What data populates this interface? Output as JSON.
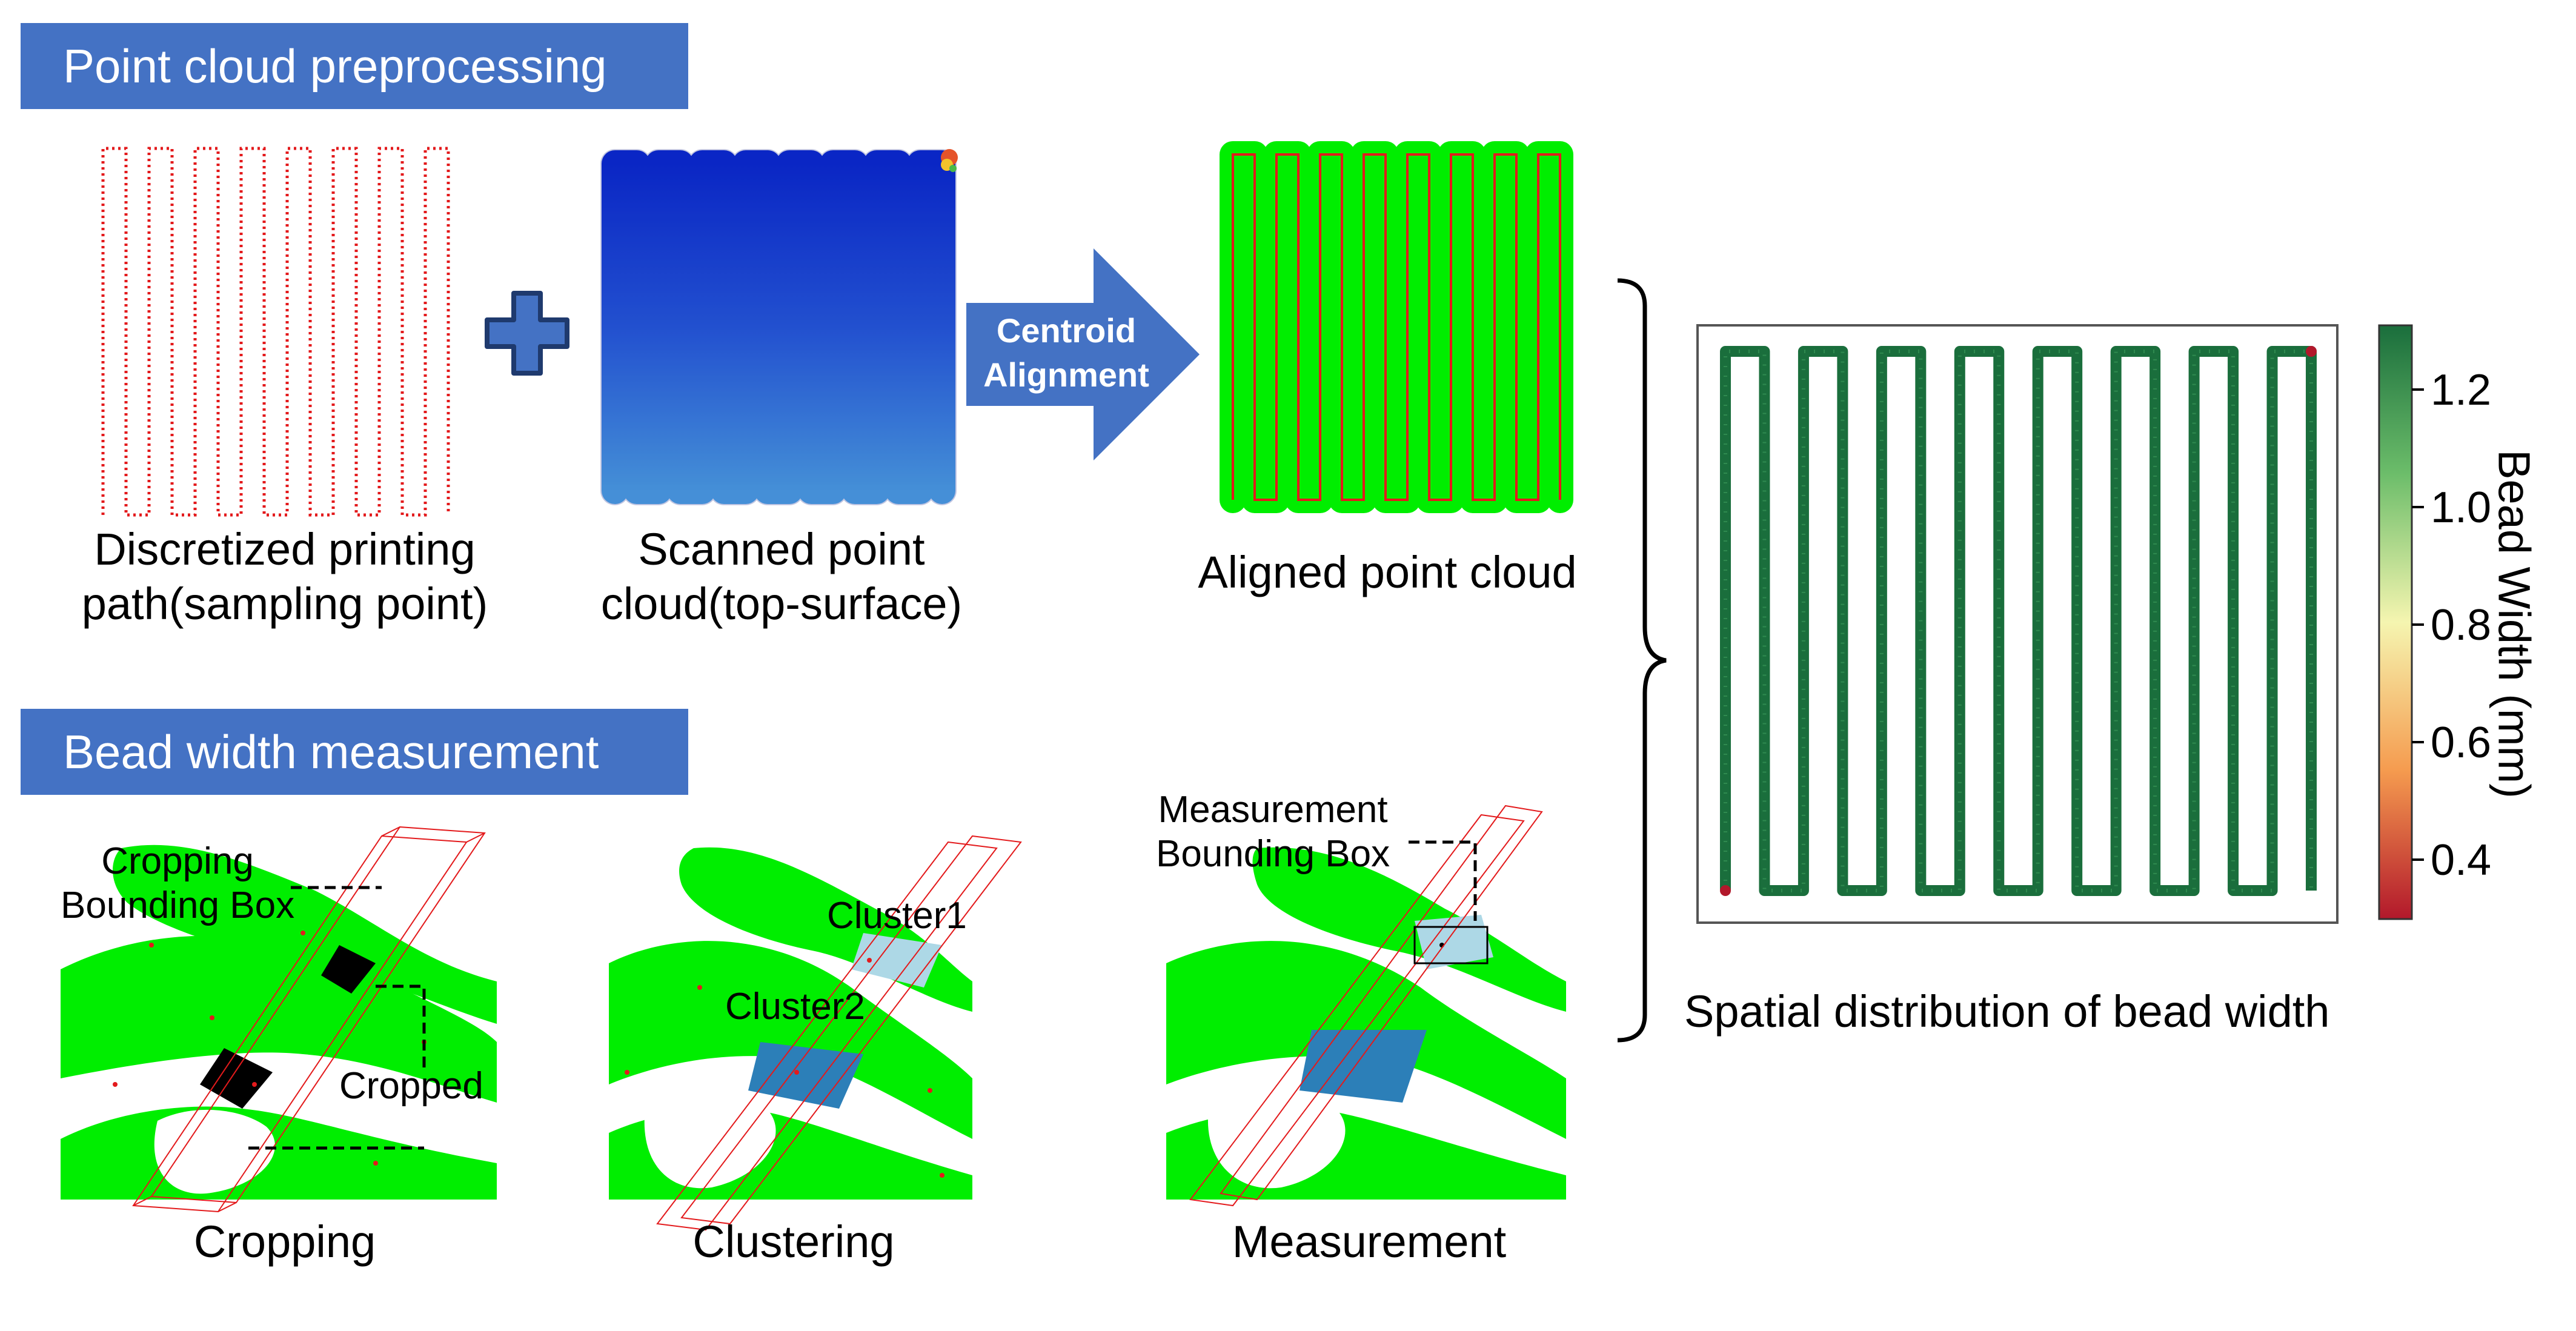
{
  "sections": {
    "preprocessing": "Point cloud preprocessing",
    "measurement": "Bead width measurement"
  },
  "top": {
    "path_caption_1": "Discretized printing",
    "path_caption_2": "path(sampling point)",
    "scan_caption_1": "Scanned point",
    "scan_caption_2": "cloud(top-surface)",
    "arrow_line_1": "Centroid",
    "arrow_line_2": "Alignment",
    "aligned_caption": "Aligned point cloud"
  },
  "bottom": {
    "cropping_box_1": "Cropping",
    "cropping_box_2": "Bounding Box",
    "cropped": "Cropped",
    "cluster1": "Cluster1",
    "cluster2": "Cluster2",
    "meas_box_1": "Measurement",
    "meas_box_2": "Bounding Box",
    "captions": [
      "Cropping",
      "Clustering",
      "Measurement"
    ]
  },
  "result": {
    "caption": "Spatial distribution of bead width",
    "colorbar_label": "Bead Width (mm)",
    "ticks": [
      "1.2",
      "1.0",
      "0.8",
      "0.6",
      "0.4"
    ],
    "colors": {
      "high": "#1a6e3c",
      "mid": "#f5f5b0",
      "low": "#b2182b"
    }
  },
  "colors": {
    "banner": "#4472c4",
    "green_cloud": "#00ee00",
    "path_red": "#e31a1c",
    "plus_blue": "#4472c4"
  }
}
